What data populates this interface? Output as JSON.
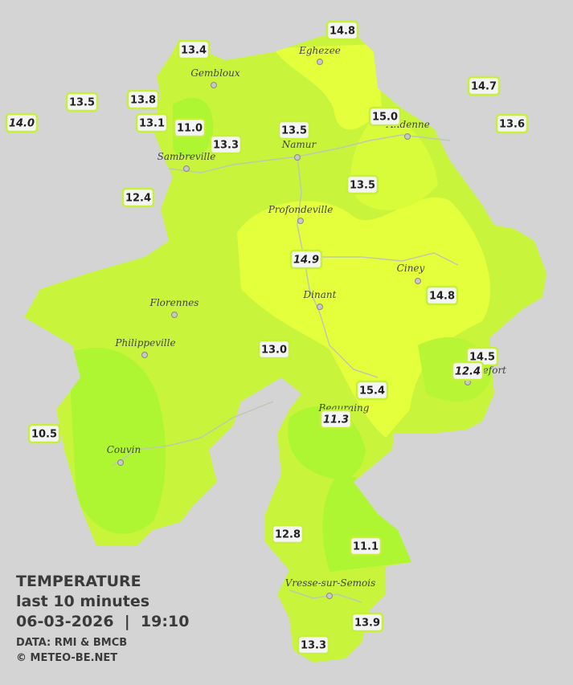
{
  "title": {
    "line1": "TEMPERATURE",
    "line2": "last 10 minutes",
    "line3": "06-03-2026  |  19:10",
    "source": "DATA: RMI & BMCB",
    "credit": "© METEO-BE.NET"
  },
  "cities": [
    "Eghezee",
    "Gembloux",
    "Andenne",
    "Namur",
    "Sambreville",
    "Profondeville",
    "Ciney",
    "Dinant",
    "Florennes",
    "Philippeville",
    "Rochefort",
    "Beauraing",
    "Couvin",
    "Vresse-sur-Semois"
  ],
  "stations": [
    {
      "label": "13.4"
    },
    {
      "label": "14.8"
    },
    {
      "label": "13.5"
    },
    {
      "label": "13.8"
    },
    {
      "label": "14.7"
    },
    {
      "label": "14.0",
      "italic": true
    },
    {
      "label": "13.1"
    },
    {
      "label": "11.0"
    },
    {
      "label": "15.0"
    },
    {
      "label": "13.6"
    },
    {
      "label": "13.5"
    },
    {
      "label": "13.3"
    },
    {
      "label": "13.5"
    },
    {
      "label": "12.4"
    },
    {
      "label": "14.9",
      "italic": true
    },
    {
      "label": "14.8"
    },
    {
      "label": "13.0"
    },
    {
      "label": "14.5"
    },
    {
      "label": "12.4",
      "italic": true
    },
    {
      "label": "15.4"
    },
    {
      "label": "11.3",
      "italic": true
    },
    {
      "label": "10.5"
    },
    {
      "label": "12.8"
    },
    {
      "label": "11.1"
    },
    {
      "label": "13.9"
    },
    {
      "label": "13.3"
    }
  ]
}
